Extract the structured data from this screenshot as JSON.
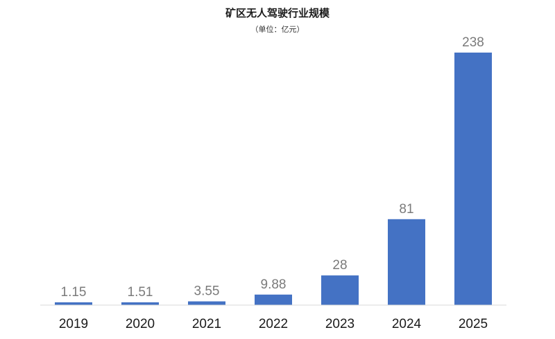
{
  "chart_data": {
    "type": "bar",
    "title": "矿区无人驾驶行业规模",
    "subtitle": "（单位：亿元）",
    "categories": [
      "2019",
      "2020",
      "2021",
      "2022",
      "2023",
      "2024",
      "2025"
    ],
    "values": [
      1.15,
      1.51,
      3.55,
      9.88,
      28,
      81,
      238
    ],
    "value_labels": [
      "1.15",
      "1.51",
      "3.55",
      "9.88",
      "28",
      "81",
      "238"
    ],
    "xlabel": "",
    "ylabel": "",
    "ylim": [
      0,
      238
    ],
    "grid": false,
    "legend": "none",
    "colors": {
      "bar": "#4472c4",
      "axis": "#d9d9d9",
      "data_label": "#7a7a7a",
      "tick_label": "#1a1a1a"
    }
  }
}
